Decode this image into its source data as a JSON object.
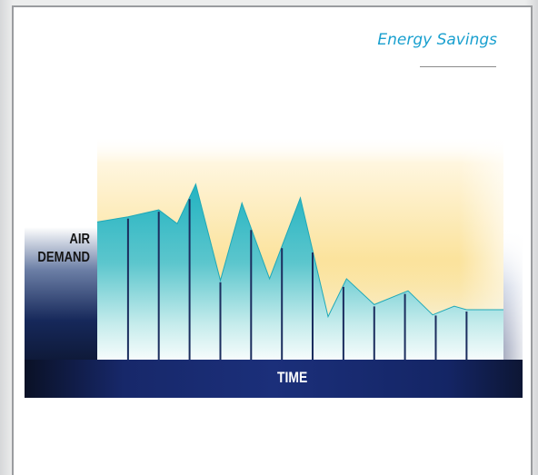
{
  "title": "Energy Savings",
  "chart_data": {
    "type": "area",
    "title": "Energy Savings",
    "xlabel": "TIME",
    "ylabel": "AIR DEMAND",
    "x_unit": "interval",
    "series": [
      {
        "points": [
          [
            0,
            0.8
          ],
          [
            1,
            0.83
          ],
          [
            2,
            0.87
          ],
          [
            2.6,
            0.79
          ],
          [
            3.2,
            1.02
          ],
          [
            4.0,
            0.46
          ],
          [
            4.7,
            0.91
          ],
          [
            5.6,
            0.47
          ],
          [
            6.6,
            0.94
          ],
          [
            7.5,
            0.25
          ],
          [
            8.1,
            0.47
          ],
          [
            9.0,
            0.32
          ],
          [
            10.1,
            0.4
          ],
          [
            10.9,
            0.26
          ],
          [
            11.6,
            0.31
          ],
          [
            12.0,
            0.29
          ],
          [
            13.2,
            0.29
          ]
        ]
      }
    ],
    "bar_dividers": [
      1,
      2,
      3,
      4,
      5,
      6,
      7,
      8,
      9,
      10,
      11,
      12
    ],
    "xlim": [
      0,
      13.2
    ],
    "ylim": [
      0,
      1.05
    ],
    "grid": false,
    "legend": "none"
  },
  "colors": {
    "title": "#1aa0cf",
    "area_top": "#2fb9c4",
    "area_bottom": "#eaf7f6",
    "sky_top": "#fff8e6",
    "sky_mid": "#fbe29a",
    "axis_band": "#15255c",
    "dark_corner": "#0a0f1e",
    "divider": "#1b2d5e"
  }
}
